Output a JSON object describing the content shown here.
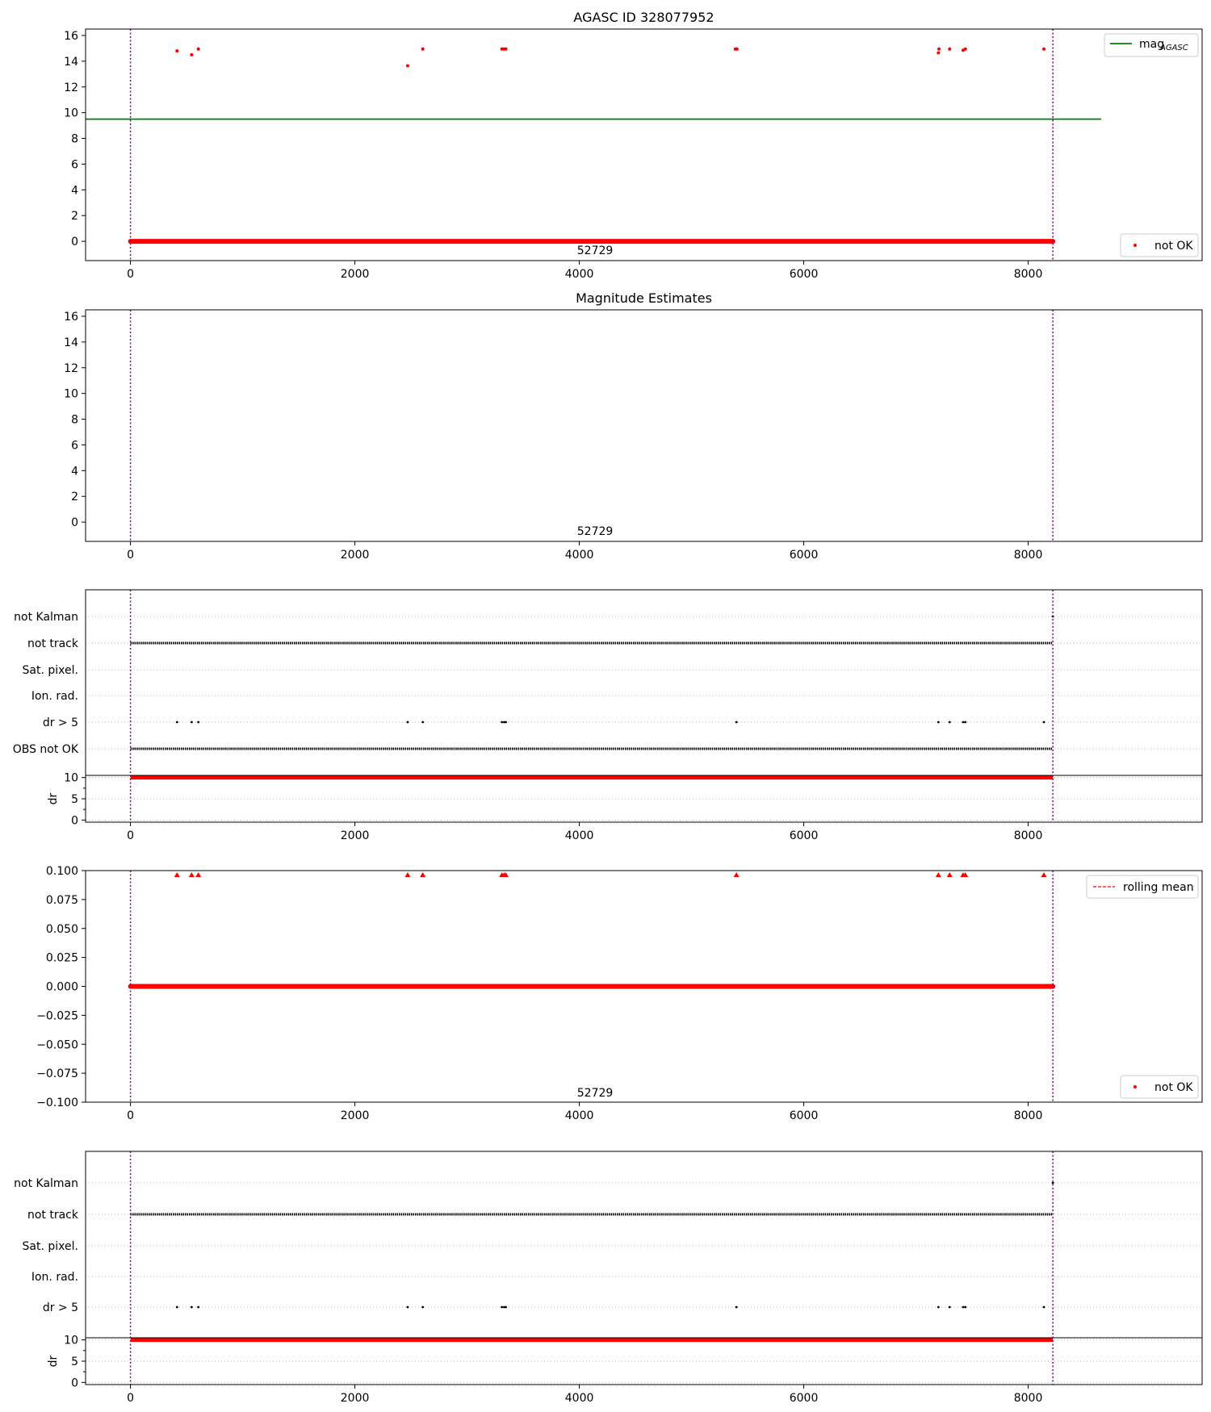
{
  "figure": {
    "title": "AGASC ID 328077952"
  },
  "colors": {
    "red": "#ff0000",
    "green": "#008000",
    "purple": "#800080",
    "black": "#000000",
    "grid": "#b0b0b0"
  },
  "common": {
    "obsid_label": "52729",
    "x_ticks": [
      0,
      2000,
      4000,
      6000,
      8000
    ],
    "xlim": [
      -400,
      9550
    ],
    "obs_bounds": [
      0,
      8220
    ]
  },
  "chart_data": [
    {
      "type": "scatter",
      "panel": "magnitude",
      "title": "",
      "xlim": [
        -400,
        9550
      ],
      "ylim": [
        -1.5,
        16.5
      ],
      "y_ticks": [
        0,
        2,
        4,
        6,
        8,
        10,
        12,
        14,
        16
      ],
      "agasc_mag": {
        "value": 9.5,
        "x_range": [
          -400,
          8650
        ]
      },
      "not_ok_baseline": {
        "y": 0,
        "x_range": [
          0,
          8220
        ]
      },
      "not_ok_points": [
        [
          415,
          14.8
        ],
        [
          545,
          14.5
        ],
        [
          605,
          14.95
        ],
        [
          2470,
          13.65
        ],
        [
          2605,
          14.95
        ],
        [
          3310,
          14.95
        ],
        [
          3330,
          14.95
        ],
        [
          3345,
          14.95
        ],
        [
          5390,
          14.95
        ],
        [
          5405,
          14.95
        ],
        [
          7200,
          14.65
        ],
        [
          7205,
          14.95
        ],
        [
          7300,
          14.95
        ],
        [
          7420,
          14.85
        ],
        [
          7440,
          14.95
        ],
        [
          8140,
          14.95
        ]
      ],
      "legend": {
        "line_label": "mag",
        "line_subscript": "AGASC",
        "line_position": "upper-right",
        "points_label": "not OK",
        "points_position": "lower-right"
      },
      "obsid_label": "52729"
    },
    {
      "type": "scatter",
      "panel": "magnitude-estimates",
      "title": "Magnitude Estimates",
      "xlim": [
        -400,
        9550
      ],
      "ylim": [
        -1.5,
        16.5
      ],
      "y_ticks": [
        0,
        2,
        4,
        6,
        8,
        10,
        12,
        14,
        16
      ],
      "obsid_label": "52729"
    },
    {
      "type": "flags",
      "panel": "flags-1",
      "xlim": [
        -400,
        9550
      ],
      "categories": [
        "OBS not OK",
        "dr > 5",
        "Ion. rad.",
        "Sat. pixel.",
        "not track",
        "not Kalman"
      ],
      "rows": {
        "not Kalman": {
          "marks": [
            8220
          ]
        },
        "not track": {
          "continuous": [
            0,
            8220
          ]
        },
        "Sat. pixel.": {},
        "Ion. rad.": {},
        "dr > 5": {
          "marks": [
            415,
            545,
            605,
            2470,
            2605,
            3310,
            3330,
            3345,
            5400,
            7200,
            7300,
            7420,
            7440,
            8140
          ]
        },
        "OBS not OK": {
          "continuous": [
            0,
            8220
          ]
        }
      },
      "dr_subplot": {
        "ylabel": "dr",
        "y_ticks": [
          0,
          5,
          10
        ],
        "ylim": [
          -0.5,
          10.5
        ],
        "value": 10,
        "x_range": [
          0,
          8220
        ]
      }
    },
    {
      "type": "scatter",
      "panel": "delta",
      "xlim": [
        -400,
        9550
      ],
      "ylim": [
        -0.1,
        0.1
      ],
      "y_ticks": [
        "0.100",
        "0.075",
        "0.050",
        "0.025",
        "0.000",
        "−0.025",
        "−0.050",
        "−0.075",
        "−0.100"
      ],
      "y_tick_values": [
        0.1,
        0.075,
        0.05,
        0.025,
        0,
        -0.025,
        -0.05,
        -0.075,
        -0.1
      ],
      "baseline": {
        "y": 0,
        "x_range": [
          0,
          8220
        ]
      },
      "clipped_markers": [
        415,
        545,
        605,
        2470,
        2605,
        3310,
        3330,
        3345,
        5400,
        7200,
        7300,
        7420,
        7440,
        8140
      ],
      "legend": {
        "line_label": "rolling mean",
        "line_position": "upper-right",
        "points_label": "not OK",
        "points_position": "lower-right"
      },
      "obsid_label": "52729"
    },
    {
      "type": "flags",
      "panel": "flags-2",
      "xlim": [
        -400,
        9550
      ],
      "categories": [
        "dr > 5",
        "Ion. rad.",
        "Sat. pixel.",
        "not track",
        "not Kalman"
      ],
      "rows": {
        "not Kalman": {
          "marks": [
            8220
          ]
        },
        "not track": {
          "continuous": [
            0,
            8220
          ]
        },
        "Sat. pixel.": {},
        "Ion. rad.": {},
        "dr > 5": {
          "marks": [
            415,
            545,
            605,
            2470,
            2605,
            3310,
            3330,
            3345,
            5400,
            7200,
            7300,
            7420,
            7440,
            8140
          ]
        }
      },
      "dr_subplot": {
        "ylabel": "dr",
        "y_ticks": [
          0,
          5,
          10
        ],
        "ylim": [
          -0.5,
          10.5
        ],
        "value": 10,
        "x_range": [
          0,
          8220
        ]
      }
    }
  ]
}
